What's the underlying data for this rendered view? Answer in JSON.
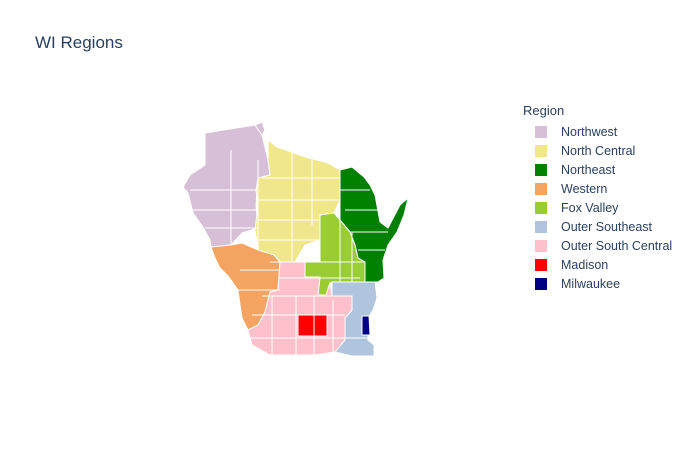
{
  "title": "WI Regions",
  "legend": {
    "title": "Region",
    "items": [
      {
        "label": "Northwest",
        "color": "#d8bfd8"
      },
      {
        "label": "North Central",
        "color": "#f0e68c"
      },
      {
        "label": "Northeast",
        "color": "#008000"
      },
      {
        "label": "Western",
        "color": "#f4a460"
      },
      {
        "label": "Fox Valley",
        "color": "#9acd32"
      },
      {
        "label": "Outer Southeast",
        "color": "#b0c4de"
      },
      {
        "label": "Outer South Central",
        "color": "#ffc0cb"
      },
      {
        "label": "Madison",
        "color": "#ff0000"
      },
      {
        "label": "Milwaukee",
        "color": "#000080"
      }
    ]
  },
  "border_color": "#ffffff"
}
